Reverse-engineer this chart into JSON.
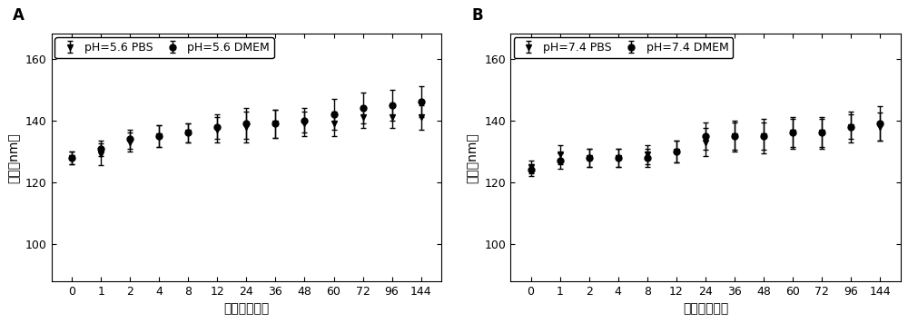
{
  "x_ticks": [
    0,
    1,
    2,
    4,
    8,
    12,
    24,
    36,
    48,
    60,
    72,
    96,
    144
  ],
  "panel_A": {
    "label": "A",
    "title_legend1": "pH=5.6 PBS",
    "title_legend2": "pH=5.6 DMEM",
    "pbs_mean": [
      128,
      129,
      133,
      135,
      136,
      137,
      138,
      139,
      139,
      139,
      141,
      141,
      141
    ],
    "pbs_err": [
      2.0,
      3.5,
      3.0,
      3.5,
      3.0,
      4.0,
      5.0,
      4.5,
      4.0,
      4.0,
      3.5,
      3.5,
      4.0
    ],
    "dmem_mean": [
      128,
      131,
      134,
      135,
      136,
      138,
      139,
      139,
      140,
      142,
      144,
      145,
      146
    ],
    "dmem_err": [
      2.0,
      2.5,
      3.0,
      3.5,
      3.0,
      4.0,
      5.0,
      4.5,
      4.0,
      5.0,
      5.0,
      5.0,
      5.0
    ],
    "xlabel": "时间（小时）",
    "ylabel": "粒径（nm）",
    "ylim": [
      88,
      168
    ],
    "yticks": [
      100,
      120,
      140,
      160
    ]
  },
  "panel_B": {
    "label": "B",
    "title_legend1": "pH=7.4 PBS",
    "title_legend2": "pH=7.4 DMEM",
    "pbs_mean": [
      125,
      129,
      128,
      128,
      129,
      130,
      133,
      135,
      135,
      136,
      136,
      138,
      138
    ],
    "pbs_err": [
      2.0,
      3.0,
      3.0,
      3.0,
      3.0,
      3.5,
      4.5,
      4.5,
      4.5,
      4.5,
      4.5,
      4.0,
      4.5
    ],
    "dmem_mean": [
      124,
      127,
      128,
      128,
      128,
      130,
      135,
      135,
      135,
      136,
      136,
      138,
      139
    ],
    "dmem_err": [
      2.0,
      2.5,
      3.0,
      3.0,
      3.0,
      3.5,
      4.5,
      5.0,
      5.5,
      5.0,
      5.0,
      5.0,
      5.5
    ],
    "xlabel": "时间（小时）",
    "ylabel": "粒径（nm）",
    "ylim": [
      88,
      168
    ],
    "yticks": [
      100,
      120,
      140,
      160
    ]
  },
  "line_color": "#000000",
  "marker_triangle": "v",
  "marker_circle": "o",
  "markersize": 5,
  "linewidth": 1.2,
  "capsize": 2.5,
  "elinewidth": 1.0,
  "background_color": "#ffffff",
  "fontsize_label": 10,
  "fontsize_tick": 9,
  "fontsize_legend": 9,
  "fontsize_panel_label": 12
}
